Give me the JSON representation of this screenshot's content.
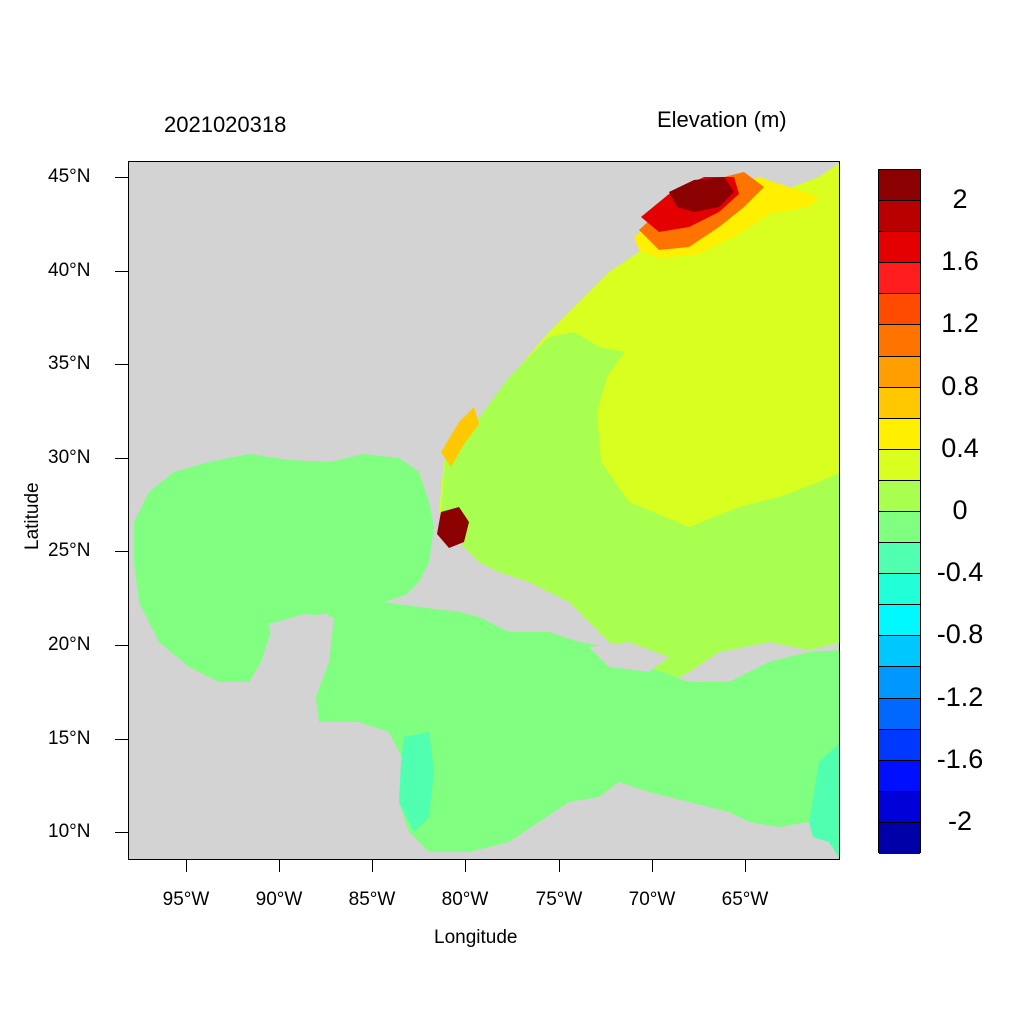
{
  "titles": {
    "left": "2021020318",
    "right": "Elevation (m)"
  },
  "axes": {
    "xlabel": "Longitude",
    "ylabel": "Latitude",
    "xticks": [
      "95°W",
      "90°W",
      "85°W",
      "80°W",
      "75°W",
      "70°W",
      "65°W"
    ],
    "yticks": [
      "45°N",
      "40°N",
      "35°N",
      "30°N",
      "25°N",
      "20°N",
      "15°N",
      "10°N"
    ],
    "lon_range": [
      -98.2,
      -60.1
    ],
    "lat_range": [
      8.6,
      45.9
    ]
  },
  "colorbar": {
    "colors": [
      "#8b0000",
      "#b80000",
      "#e40000",
      "#ff1c1c",
      "#ff4b00",
      "#ff7400",
      "#ff9e00",
      "#ffc800",
      "#fff000",
      "#d8ff20",
      "#a8ff50",
      "#80ff80",
      "#50ffb0",
      "#20ffd8",
      "#00f8ff",
      "#00c8ff",
      "#0098ff",
      "#0068ff",
      "#0038ff",
      "#0010ff",
      "#0000d8",
      "#0000a8"
    ],
    "labels": [
      "2",
      "1.6",
      "1.2",
      "0.8",
      "0.4",
      "0",
      "-0.4",
      "-0.8",
      "-1.2",
      "-1.6",
      "-2"
    ],
    "land_color": "#d3d3d3"
  }
}
